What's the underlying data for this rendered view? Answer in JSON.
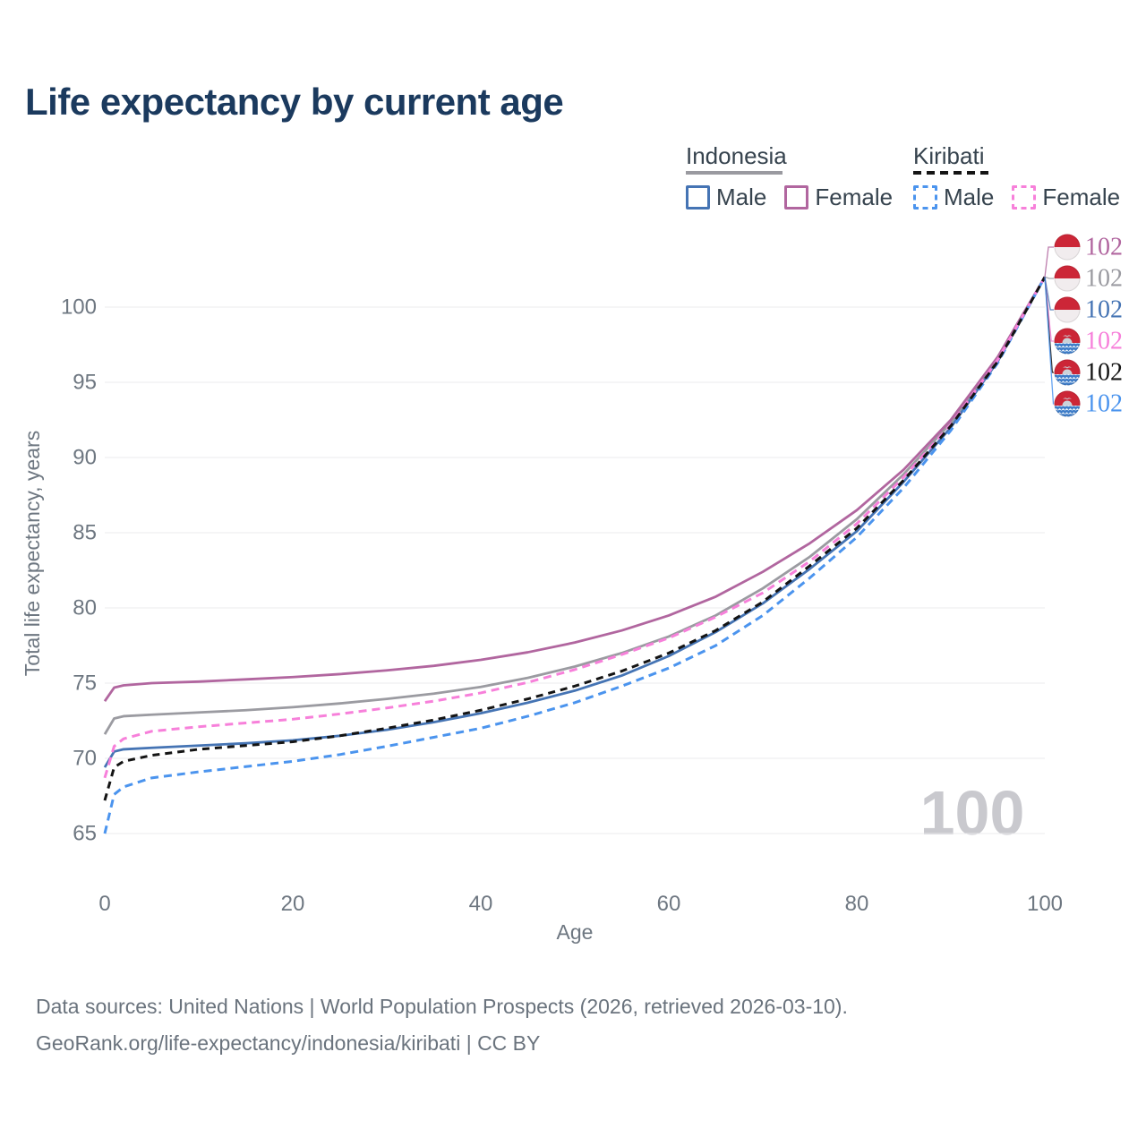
{
  "title": "Life expectancy by current age",
  "legend": {
    "groups": [
      {
        "label": "Indonesia",
        "style": "solid",
        "underline_color": "#9a9aa0",
        "items": [
          {
            "label": "Male",
            "color": "#4574b4"
          },
          {
            "label": "Female",
            "color": "#b1669f"
          }
        ]
      },
      {
        "label": "Kiribati",
        "style": "dashed",
        "underline_color": "#151515",
        "items": [
          {
            "label": "Male",
            "color": "#4b94ee"
          },
          {
            "label": "Female",
            "color": "#f780da"
          }
        ]
      }
    ]
  },
  "footer": {
    "line1": "Data sources: United Nations | World Population Prospects (2026, retrieved 2026-03-10).",
    "line2": "GeoRank.org/life-expectancy/indonesia/kiribati | CC BY"
  },
  "chart_data": {
    "type": "line",
    "title": "Life expectancy by current age",
    "xlabel": "Age",
    "ylabel": "Total life expectancy, years",
    "x_ticks": [
      0,
      20,
      40,
      60,
      80,
      100
    ],
    "y_ticks": [
      65,
      70,
      75,
      80,
      85,
      90,
      95,
      100
    ],
    "xlim": [
      0,
      100
    ],
    "ylim": [
      63.5,
      103
    ],
    "grid": "horizontal",
    "watermark": "100",
    "ages": [
      0,
      1,
      2,
      5,
      10,
      15,
      20,
      25,
      30,
      35,
      40,
      45,
      50,
      55,
      60,
      65,
      70,
      75,
      80,
      85,
      90,
      95,
      100
    ],
    "series": [
      {
        "name": "Indonesia Both sexes",
        "country": "Indonesia",
        "sex": "Both",
        "color": "#9b9ba1",
        "dashed": false,
        "values": [
          71.6,
          72.65,
          72.8,
          72.9,
          73.05,
          73.2,
          73.4,
          73.65,
          73.95,
          74.3,
          74.75,
          75.35,
          76.1,
          77.0,
          78.1,
          79.5,
          81.3,
          83.4,
          85.9,
          88.9,
          92.3,
          96.5,
          102
        ]
      },
      {
        "name": "Indonesia Male",
        "country": "Indonesia",
        "sex": "Male",
        "color": "#4574b4",
        "dashed": false,
        "values": [
          69.4,
          70.45,
          70.6,
          70.7,
          70.85,
          71.0,
          71.2,
          71.5,
          71.9,
          72.4,
          73.0,
          73.7,
          74.5,
          75.5,
          76.8,
          78.4,
          80.3,
          82.6,
          85.1,
          88.4,
          92.0,
          96.4,
          102
        ]
      },
      {
        "name": "Indonesia Female",
        "country": "Indonesia",
        "sex": "Female",
        "color": "#b1669f",
        "dashed": false,
        "values": [
          73.8,
          74.7,
          74.85,
          75.0,
          75.1,
          75.25,
          75.4,
          75.6,
          75.85,
          76.15,
          76.55,
          77.05,
          77.7,
          78.5,
          79.5,
          80.75,
          82.4,
          84.3,
          86.5,
          89.2,
          92.5,
          96.7,
          102
        ]
      },
      {
        "name": "Kiribati Male",
        "country": "Kiribati",
        "sex": "Male",
        "color": "#4b94ee",
        "dashed": true,
        "values": [
          65.0,
          67.6,
          68.1,
          68.7,
          69.1,
          69.45,
          69.8,
          70.25,
          70.8,
          71.4,
          72.0,
          72.8,
          73.7,
          74.8,
          76.0,
          77.5,
          79.5,
          82.0,
          84.7,
          88.0,
          91.8,
          96.3,
          102
        ]
      },
      {
        "name": "Kiribati Female",
        "country": "Kiribati",
        "sex": "Female",
        "color": "#f780da",
        "dashed": true,
        "values": [
          68.7,
          70.8,
          71.3,
          71.8,
          72.1,
          72.35,
          72.6,
          72.95,
          73.35,
          73.8,
          74.35,
          75.05,
          75.9,
          76.9,
          78.0,
          79.4,
          81.0,
          83.1,
          85.6,
          88.7,
          92.2,
          96.5,
          102
        ]
      },
      {
        "name": "Kiribati Both sexes",
        "country": "Kiribati",
        "sex": "Both",
        "color": "#141414",
        "dashed": true,
        "values": [
          67.2,
          69.4,
          69.8,
          70.2,
          70.6,
          70.85,
          71.1,
          71.5,
          72.0,
          72.55,
          73.2,
          73.95,
          74.8,
          75.8,
          77.0,
          78.5,
          80.4,
          82.8,
          85.3,
          88.5,
          92.1,
          96.4,
          102
        ]
      }
    ],
    "end_labels": [
      {
        "value": "102",
        "color": "#b1669f",
        "flag": "indonesia",
        "series": "Indonesia Female"
      },
      {
        "value": "102",
        "color": "#9b9ba1",
        "flag": "indonesia",
        "series": "Indonesia Both sexes"
      },
      {
        "value": "102",
        "color": "#4574b4",
        "flag": "indonesia",
        "series": "Indonesia Male"
      },
      {
        "value": "102",
        "color": "#f780da",
        "flag": "kiribati",
        "series": "Kiribati Female"
      },
      {
        "value": "102",
        "color": "#141414",
        "flag": "kiribati",
        "series": "Kiribati Both sexes"
      },
      {
        "value": "102",
        "color": "#4b94ee",
        "flag": "kiribati",
        "series": "Kiribati Male"
      }
    ]
  }
}
